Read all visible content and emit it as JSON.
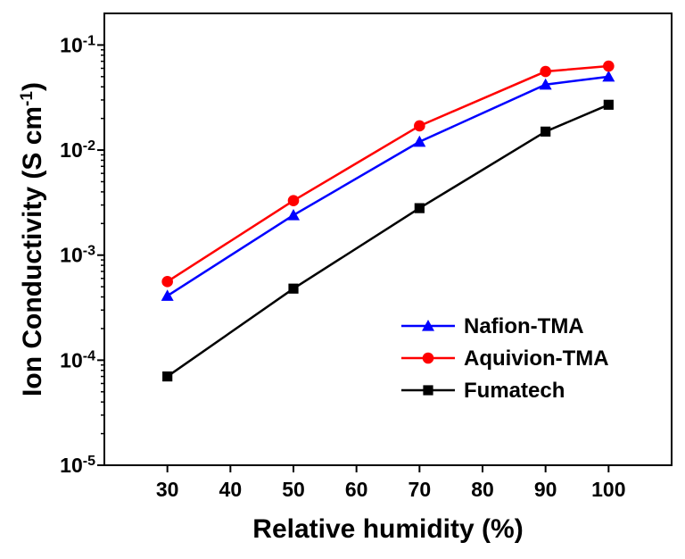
{
  "chart_data": {
    "type": "line",
    "title": "",
    "xlabel": "Relative humidity (%)",
    "ylabel": {
      "main": "Ion Conductivity (S cm",
      "sup": "-1",
      "end": ")"
    },
    "x": [
      30,
      50,
      70,
      90,
      100
    ],
    "xlim": [
      20,
      110
    ],
    "x_ticks": [
      30,
      40,
      50,
      60,
      70,
      80,
      90,
      100
    ],
    "y_scale": "log",
    "ylim": [
      1e-05,
      0.2
    ],
    "y_ticks": [
      {
        "value": 1e-05,
        "base": "10",
        "exp": "-5"
      },
      {
        "value": 0.0001,
        "base": "10",
        "exp": "-4"
      },
      {
        "value": 0.001,
        "base": "10",
        "exp": "-3"
      },
      {
        "value": 0.01,
        "base": "10",
        "exp": "-2"
      },
      {
        "value": 0.1,
        "base": "10",
        "exp": "-1"
      }
    ],
    "grid": false,
    "legend_position": "lower-right",
    "series": [
      {
        "name": "Nafion-TMA",
        "color": "#0000ff",
        "marker": "triangle",
        "values": [
          0.00041,
          0.0024,
          0.012,
          0.042,
          0.05
        ]
      },
      {
        "name": "Aquivion-TMA",
        "color": "#ff0000",
        "marker": "circle",
        "values": [
          0.00056,
          0.0033,
          0.017,
          0.056,
          0.063
        ]
      },
      {
        "name": "Fumatech",
        "color": "#000000",
        "marker": "square",
        "values": [
          7e-05,
          0.00048,
          0.0028,
          0.015,
          0.027
        ]
      }
    ]
  }
}
